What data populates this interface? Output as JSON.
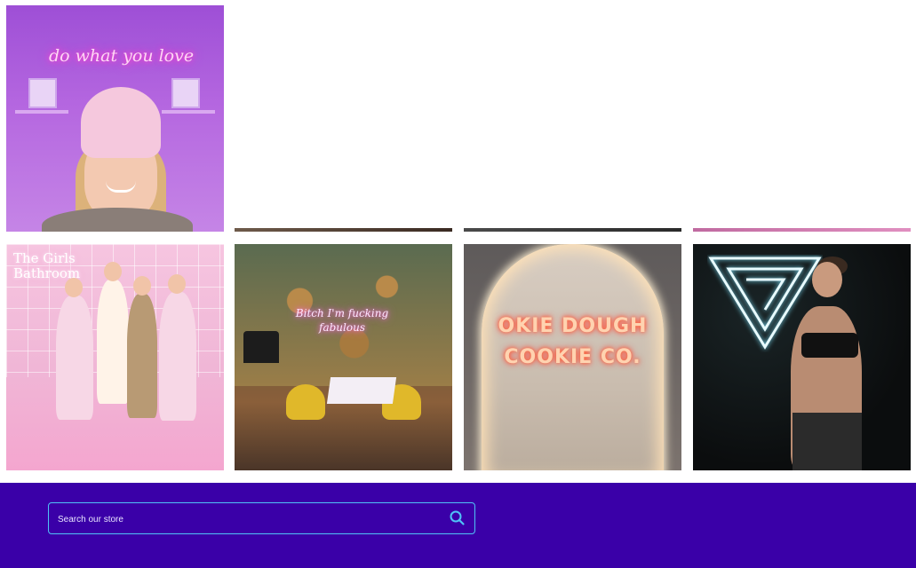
{
  "gallery": {
    "tiles": [
      {
        "id": "t1",
        "text": "do what you love"
      },
      {
        "id": "t2",
        "text": "The Girls Bathroom"
      },
      {
        "id": "t3",
        "text": "Bitch I'm fucking fabulous"
      },
      {
        "id": "t4",
        "line1": "OKIE DOUGH",
        "line2": "COOKIE CO."
      },
      {
        "id": "t5",
        "text": ""
      }
    ]
  },
  "footer": {
    "search": {
      "placeholder": "Search our store",
      "value": "",
      "icon": "search-icon"
    },
    "background_color": "#3a00a8",
    "border_color": "#4fc3f7"
  }
}
